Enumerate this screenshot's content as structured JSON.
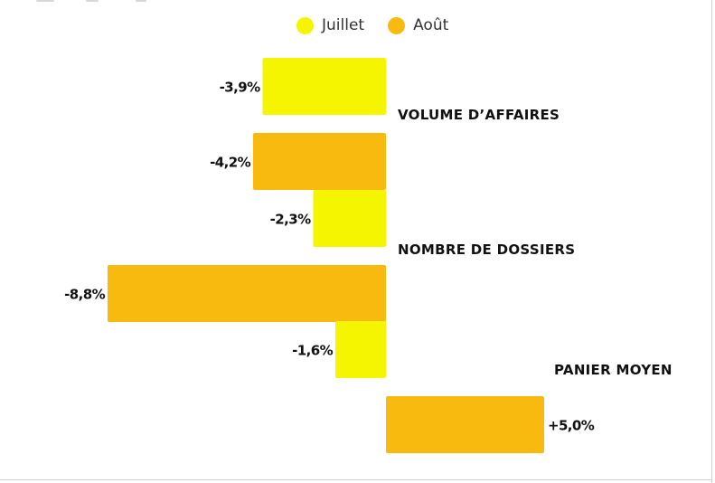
{
  "chart_data": {
    "type": "bar",
    "orientation": "horizontal",
    "categories": [
      "VOLUME D’AFFAIRES",
      "NOMBRE DE DOSSIERS",
      "PANIER MOYEN"
    ],
    "series": [
      {
        "name": "Juillet",
        "values": [
          -3.9,
          -2.3,
          -1.6
        ],
        "labels": [
          "-3,9%",
          "-2,3%",
          "-1,6%"
        ],
        "color": "#f5f500"
      },
      {
        "name": "Août",
        "values": [
          -4.2,
          -8.8,
          5.0
        ],
        "labels": [
          "-4,2%",
          "-8,8%",
          "+5,0%"
        ],
        "color": "#f9ba0f"
      }
    ],
    "legend": "top-center",
    "grid": false,
    "xlim": [
      -10,
      10
    ]
  }
}
